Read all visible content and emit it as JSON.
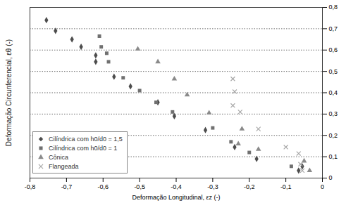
{
  "chart_data": {
    "type": "scatter",
    "x_label": "Deformação Longitudinal, εz (-)",
    "y_label": "Deformação Circunferencial, εθ (-)",
    "xlim": [
      -0.8,
      0
    ],
    "ylim": [
      0,
      0.8
    ],
    "xticks": [
      {
        "value": -0.8,
        "label": "-0,8"
      },
      {
        "value": -0.7,
        "label": "-0,7"
      },
      {
        "value": -0.6,
        "label": "-0,6"
      },
      {
        "value": -0.5,
        "label": "-0,5"
      },
      {
        "value": -0.4,
        "label": "-0,4"
      },
      {
        "value": -0.3,
        "label": "-0,3"
      },
      {
        "value": -0.2,
        "label": "-0,2"
      },
      {
        "value": -0.1,
        "label": "-0,1"
      },
      0
    ],
    "yticks": [
      0,
      {
        "value": 0.1,
        "label": "0,1"
      },
      {
        "value": 0.2,
        "label": "0,2"
      },
      {
        "value": 0.3,
        "label": "0,3"
      },
      {
        "value": 0.4,
        "label": "0,4"
      },
      {
        "value": 0.5,
        "label": "0,5"
      },
      {
        "value": 0.6,
        "label": "0,6"
      },
      {
        "value": 0.7,
        "label": "0,7"
      },
      {
        "value": 0.8,
        "label": "0,8"
      }
    ],
    "grid": true,
    "legend": "bottom-left",
    "series": [
      {
        "name": "Cilíndrica com h0/d0 = 1,5",
        "color": "#4d4d4d",
        "marker": "diamond",
        "x": [
          -0.755,
          -0.73,
          -0.685,
          -0.66,
          -0.62,
          -0.62,
          -0.57,
          -0.525,
          -0.45,
          -0.405,
          -0.32,
          -0.24,
          -0.18,
          -0.065,
          -0.055
        ],
        "y": [
          0.74,
          0.69,
          0.65,
          0.615,
          0.575,
          0.545,
          0.475,
          0.43,
          0.355,
          0.29,
          0.225,
          0.145,
          0.09,
          0.035,
          0.055
        ]
      },
      {
        "name": "Cilíndrica com h0/d0 = 1",
        "color": "#707070",
        "marker": "square",
        "x": [
          -0.61,
          -0.605,
          -0.59,
          -0.585,
          -0.545,
          -0.5,
          -0.455,
          -0.41,
          -0.3,
          -0.25,
          -0.2,
          -0.085
        ],
        "y": [
          0.665,
          0.615,
          0.585,
          0.545,
          0.47,
          0.41,
          0.355,
          0.31,
          0.235,
          0.17,
          0.12,
          0.055
        ]
      },
      {
        "name": "Cônica",
        "color": "#8a8a8a",
        "marker": "triangle",
        "x": [
          -0.505,
          -0.45,
          -0.405,
          -0.37,
          -0.31,
          -0.22,
          -0.23,
          -0.175,
          -0.05,
          -0.035
        ],
        "y": [
          0.605,
          0.545,
          0.465,
          0.39,
          0.305,
          0.23,
          0.16,
          0.135,
          0.08,
          0.035
        ]
      },
      {
        "name": "Flangeada",
        "color": "#a8a8a8",
        "marker": "x",
        "x": [
          -0.245,
          -0.24,
          -0.245,
          -0.225,
          -0.175,
          -0.1,
          -0.065,
          -0.06,
          -0.055
        ],
        "y": [
          0.465,
          0.405,
          0.34,
          0.31,
          0.23,
          0.145,
          0.115,
          0.065,
          0.035
        ]
      }
    ]
  }
}
